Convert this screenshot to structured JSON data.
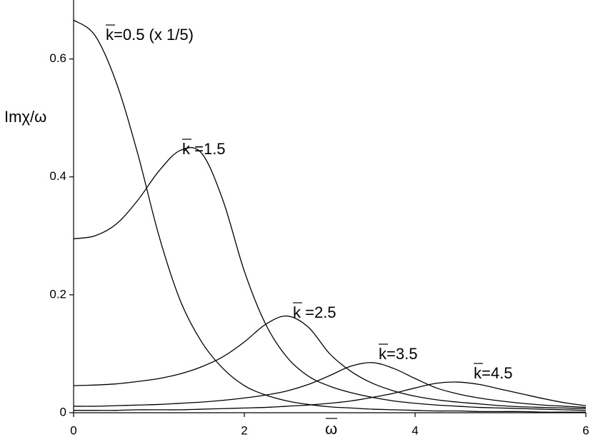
{
  "chart_data": {
    "type": "line",
    "x_label": "ω",
    "y_label": "Imχ/ω",
    "x": [
      0,
      0.25,
      0.5,
      0.75,
      1,
      1.25,
      1.5,
      1.75,
      2,
      2.25,
      2.5,
      2.75,
      3,
      3.25,
      3.5,
      3.75,
      4,
      4.25,
      4.5,
      4.75,
      5,
      5.25,
      5.5,
      5.75,
      6
    ],
    "series": [
      {
        "name": "k=0.5 (x 1/5)",
        "color": "#000000",
        "values": [
          0.666,
          0.64,
          0.56,
          0.44,
          0.3,
          0.19,
          0.12,
          0.075,
          0.046,
          0.03,
          0.02,
          0.014,
          0.01,
          0.008,
          0.006,
          0.005,
          0.004,
          0.003,
          0.003,
          0.002,
          0.002,
          0.002,
          0.001,
          0.001,
          0.001
        ]
      },
      {
        "name": "k =1.5",
        "color": "#000000",
        "values": [
          0.295,
          0.3,
          0.32,
          0.36,
          0.41,
          0.445,
          0.44,
          0.36,
          0.24,
          0.15,
          0.094,
          0.062,
          0.045,
          0.034,
          0.026,
          0.02,
          0.016,
          0.013,
          0.011,
          0.009,
          0.008,
          0.007,
          0.006,
          0.005,
          0.004
        ]
      },
      {
        "name": "k =2.5",
        "color": "#000000",
        "values": [
          0.046,
          0.047,
          0.049,
          0.053,
          0.058,
          0.066,
          0.078,
          0.095,
          0.12,
          0.15,
          0.164,
          0.145,
          0.1,
          0.07,
          0.05,
          0.037,
          0.028,
          0.022,
          0.018,
          0.015,
          0.012,
          0.01,
          0.009,
          0.008,
          0.007
        ]
      },
      {
        "name": "k=3.5",
        "color": "#000000",
        "values": [
          0.011,
          0.011,
          0.012,
          0.013,
          0.014,
          0.016,
          0.018,
          0.021,
          0.025,
          0.03,
          0.037,
          0.048,
          0.063,
          0.079,
          0.085,
          0.075,
          0.058,
          0.042,
          0.032,
          0.025,
          0.02,
          0.016,
          0.013,
          0.011,
          0.009
        ]
      },
      {
        "name": "k=4.5",
        "color": "#000000",
        "values": [
          0.004,
          0.004,
          0.004,
          0.005,
          0.005,
          0.005,
          0.006,
          0.007,
          0.008,
          0.009,
          0.011,
          0.013,
          0.016,
          0.02,
          0.026,
          0.033,
          0.042,
          0.05,
          0.052,
          0.048,
          0.04,
          0.032,
          0.024,
          0.017,
          0.012
        ]
      }
    ],
    "xlim": [
      0,
      6
    ],
    "xticks": [
      0,
      2,
      4,
      6
    ],
    "ylim": [
      0,
      0.7
    ],
    "yticks": [
      0,
      0.2,
      0.4,
      0.6
    ]
  }
}
